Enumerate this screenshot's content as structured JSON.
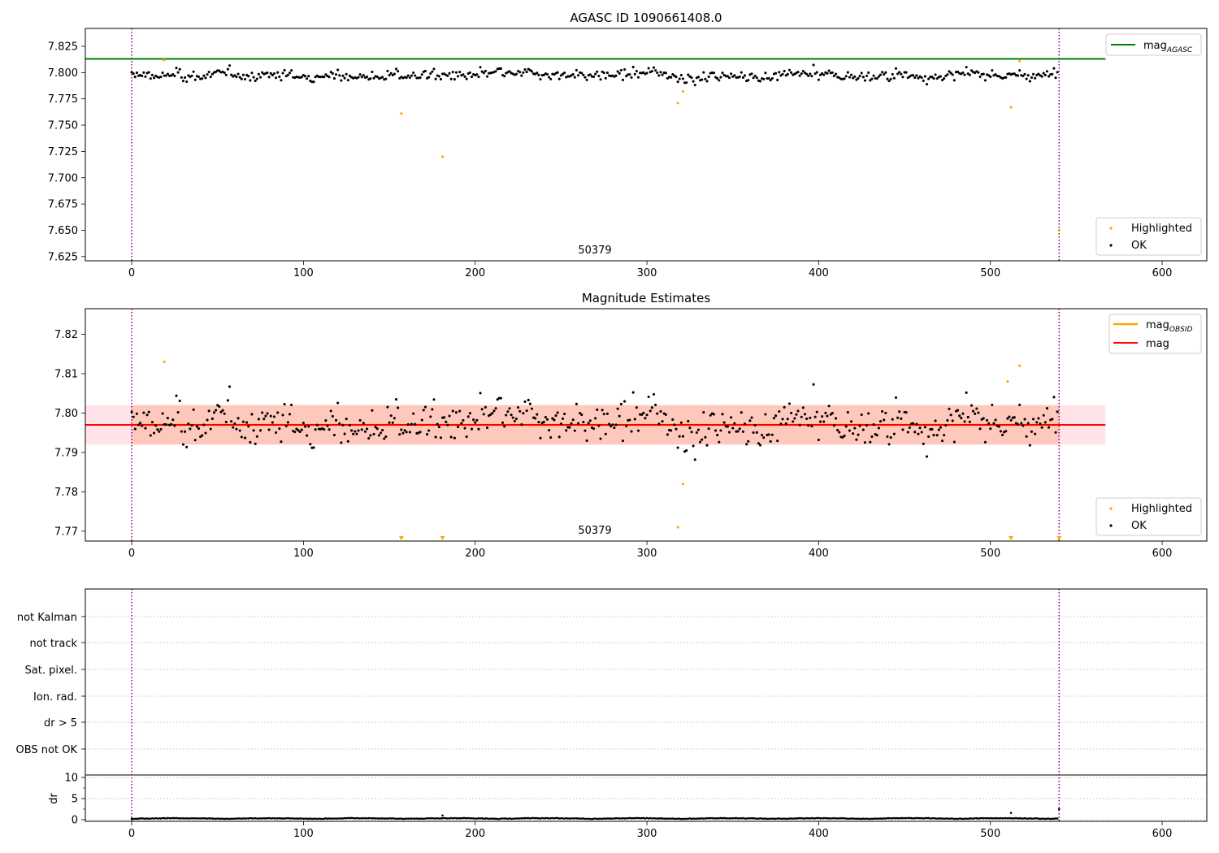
{
  "chart_data": [
    {
      "type": "scatter",
      "title": "AGASC ID 1090661408.0",
      "xlim": [
        -27,
        626
      ],
      "ylim": [
        7.621,
        7.842
      ],
      "xticks": [
        "0",
        "100",
        "200",
        "300",
        "400",
        "500",
        "600"
      ],
      "yticks": [
        "7.625",
        "7.650",
        "7.675",
        "7.700",
        "7.725",
        "7.750",
        "7.775",
        "7.800",
        "7.825"
      ],
      "annotation": "50379",
      "n_points": 540,
      "series": [
        {
          "name": "OK",
          "color": "#000000",
          "center": 7.797
        },
        {
          "name": "Highlighted",
          "color": "#ffa500",
          "points": [
            [
              19,
              7.812
            ],
            [
              157,
              7.761
            ],
            [
              181,
              7.72
            ],
            [
              318,
              7.771
            ],
            [
              321,
              7.782
            ],
            [
              512,
              7.767
            ],
            [
              517,
              7.811
            ],
            [
              540,
              7.65
            ]
          ]
        }
      ],
      "hlines": [
        {
          "name": "mag",
          "sub": "AGASC",
          "value": 7.813,
          "color": "#008000",
          "x_range": [
            -27,
            567
          ]
        }
      ],
      "vlines": [
        0,
        540
      ],
      "legend": [
        {
          "label": "mag",
          "sub": "AGASC",
          "kind": "line",
          "color": "#008000"
        },
        {
          "label": "Highlighted",
          "kind": "point",
          "color": "#ffa500"
        },
        {
          "label": "OK",
          "kind": "point",
          "color": "#000000"
        }
      ]
    },
    {
      "type": "scatter",
      "title": "Magnitude Estimates",
      "xlim": [
        -27,
        626
      ],
      "ylim": [
        7.7675,
        7.8265
      ],
      "xticks": [
        "0",
        "100",
        "200",
        "300",
        "400",
        "500",
        "600"
      ],
      "yticks": [
        "7.77",
        "7.78",
        "7.79",
        "7.80",
        "7.81",
        "7.82"
      ],
      "annotation": "50379",
      "n_points": 540,
      "series": [
        {
          "name": "OK",
          "color": "#000000",
          "center": 7.797
        },
        {
          "name": "Highlighted",
          "color": "#ffa500",
          "points": [
            [
              19,
              7.813
            ],
            [
              318,
              7.771
            ],
            [
              321,
              7.782
            ],
            [
              510,
              7.808
            ],
            [
              517,
              7.812
            ]
          ],
          "below_axis_markers": [
            157,
            181,
            512,
            540
          ]
        }
      ],
      "hlines": [
        {
          "name": "mag",
          "value": 7.797,
          "color": "#ff0000",
          "x_range": [
            -27,
            567
          ]
        },
        {
          "name": "mag",
          "sub": "OBSID",
          "value": 7.797,
          "color": "#ffa500",
          "x_range": [
            0,
            540
          ]
        }
      ],
      "bands": [
        {
          "name": "mag range",
          "y_range": [
            7.792,
            7.802
          ],
          "x_range": [
            -27,
            567
          ],
          "color": "#ffc0cb"
        },
        {
          "name": "mag OBSID range",
          "y_range": [
            7.792,
            7.802
          ],
          "x_range": [
            0,
            540
          ],
          "color": "#ffa07a"
        }
      ],
      "vlines": [
        0,
        540
      ],
      "legend": [
        {
          "label": "mag",
          "sub": "OBSID",
          "kind": "line",
          "color": "#ffa500"
        },
        {
          "label": "mag",
          "kind": "line",
          "color": "#ff0000"
        },
        {
          "label": "Highlighted",
          "kind": "point",
          "color": "#ffa500"
        },
        {
          "label": "OK",
          "kind": "point",
          "color": "#000000"
        }
      ]
    },
    {
      "type": "scatter",
      "title": "",
      "xlim": [
        -27,
        626
      ],
      "flag_labels": [
        "not Kalman",
        "not track",
        "Sat. pixel.",
        "Ion. rad.",
        "dr > 5",
        "OBS not OK"
      ],
      "vlines": [
        0,
        540
      ]
    },
    {
      "type": "scatter",
      "xlim": [
        -27,
        626
      ],
      "ylim": [
        -1,
        11
      ],
      "ylabel": "dr",
      "yticks": [
        "0",
        "5",
        "10"
      ],
      "xticks": [
        "0",
        "100",
        "200",
        "300",
        "400",
        "500",
        "600"
      ],
      "n_points": 540,
      "series": [
        {
          "name": "dr",
          "color": "#000000",
          "typical": 0.3,
          "outliers": [
            [
              181,
              1.0
            ],
            [
              512,
              1.6
            ],
            [
              540,
              2.5
            ]
          ]
        }
      ],
      "vlines": [
        0,
        540
      ]
    }
  ]
}
